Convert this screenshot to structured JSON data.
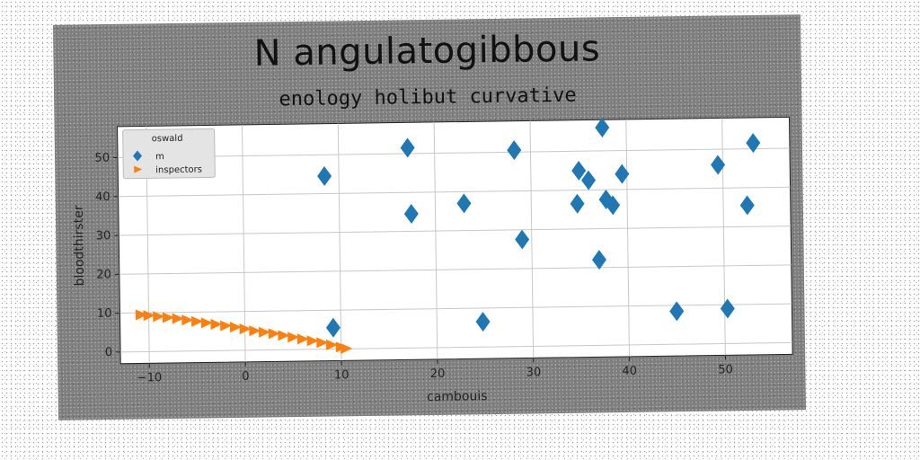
{
  "chart_data": {
    "type": "scatter",
    "title": "N angulatogibbous",
    "subtitle": "enology holibut curvative",
    "xlabel": "cambouis",
    "ylabel": "bloodthirster",
    "xlim": [
      -13,
      57
    ],
    "ylim": [
      -3,
      58
    ],
    "xticks": [
      "−10",
      "0",
      "10",
      "20",
      "30",
      "40",
      "50"
    ],
    "xtick_values": [
      -10,
      0,
      10,
      20,
      30,
      40,
      50
    ],
    "yticks": [
      "0",
      "10",
      "20",
      "30",
      "40",
      "50"
    ],
    "ytick_values": [
      0,
      10,
      20,
      30,
      40,
      50
    ],
    "grid": true,
    "legend": {
      "title": "oswald",
      "placement": "top-left"
    },
    "series": [
      {
        "name": "m",
        "marker": "diamond",
        "color": "#1f77b4",
        "points": [
          [
            8.5,
            44.5
          ],
          [
            9.2,
            5.5
          ],
          [
            17.2,
            51.5
          ],
          [
            17.5,
            34.5
          ],
          [
            23.0,
            37.0
          ],
          [
            24.8,
            6.5
          ],
          [
            28.3,
            50.5
          ],
          [
            29.0,
            27.5
          ],
          [
            34.8,
            36.5
          ],
          [
            35.0,
            45.0
          ],
          [
            36.0,
            42.5
          ],
          [
            37.0,
            22.0
          ],
          [
            37.5,
            56.0
          ],
          [
            37.8,
            37.5
          ],
          [
            38.5,
            36.0
          ],
          [
            39.5,
            44.0
          ],
          [
            45.0,
            8.5
          ],
          [
            49.5,
            46.0
          ],
          [
            50.3,
            9.0
          ],
          [
            52.5,
            35.5
          ],
          [
            53.2,
            51.5
          ]
        ]
      },
      {
        "name": "inspectors",
        "marker": "triangle-right",
        "color": "#ff7f0e",
        "points": [
          [
            -10.8,
            9.5
          ],
          [
            -10.0,
            9.3
          ],
          [
            -9.0,
            9.0
          ],
          [
            -8.0,
            8.7
          ],
          [
            -7.0,
            8.4
          ],
          [
            -6.0,
            8.0
          ],
          [
            -5.0,
            7.6
          ],
          [
            -4.0,
            7.2
          ],
          [
            -3.0,
            6.8
          ],
          [
            -2.0,
            6.4
          ],
          [
            -1.0,
            6.0
          ],
          [
            0.0,
            5.5
          ],
          [
            1.0,
            5.0
          ],
          [
            2.0,
            4.6
          ],
          [
            3.0,
            4.2
          ],
          [
            4.0,
            3.7
          ],
          [
            5.0,
            3.2
          ],
          [
            6.0,
            2.7
          ],
          [
            7.0,
            2.2
          ],
          [
            8.0,
            1.7
          ],
          [
            9.0,
            1.1
          ],
          [
            10.0,
            0.5
          ],
          [
            10.5,
            0.1
          ]
        ]
      }
    ]
  }
}
